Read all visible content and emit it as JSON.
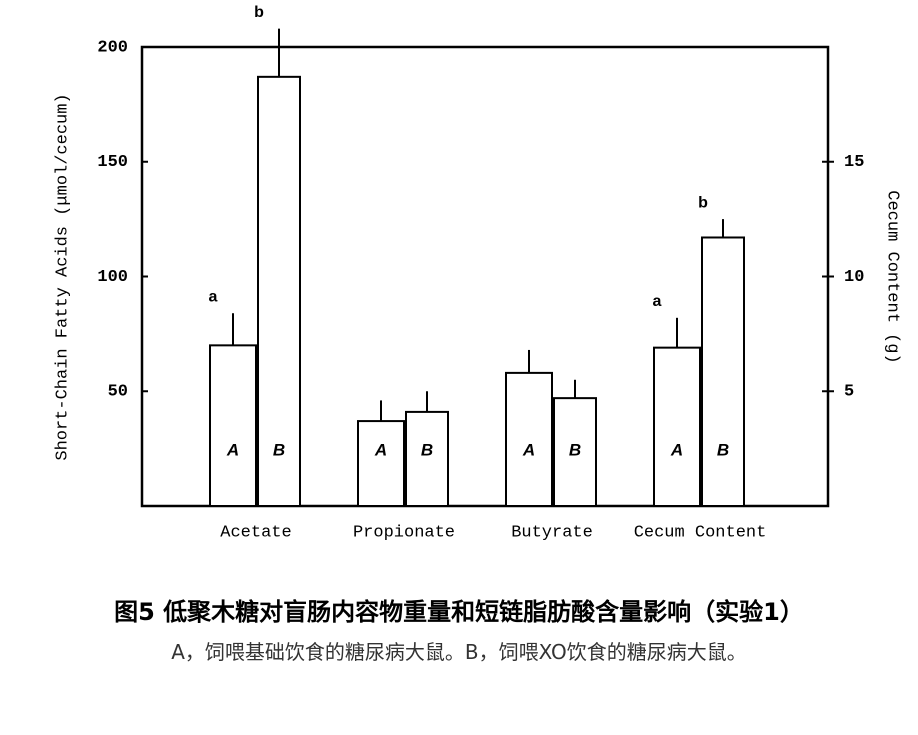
{
  "chart_data": {
    "type": "bar",
    "title": "图5 低聚木糖对盲肠内容物重量和短链脂肪酸含量影响（实验1）",
    "subtitle": "A，饲喂基础饮食的糖尿病大鼠。B，饲喂XO饮食的糖尿病大鼠。",
    "y_label": "Short-Chain Fatty Acids (μmol/cecum)",
    "y2_label": "Cecum Content (g)",
    "categories": [
      "Acetate",
      "Propionate",
      "Butyrate",
      "Cecum Content"
    ],
    "ylim": [
      0,
      200
    ],
    "yticks": [
      50,
      100,
      150,
      200
    ],
    "y2lim": [
      0,
      20
    ],
    "y2ticks": [
      5,
      10,
      15
    ],
    "series": [
      {
        "name": "A",
        "color": "#ffffff",
        "values": [
          70,
          37,
          58,
          null
        ],
        "errors": [
          14,
          9,
          10,
          null
        ],
        "significance_labels": [
          "a",
          null,
          null,
          null
        ]
      },
      {
        "name": "B",
        "color": "#ffffff",
        "values": [
          187,
          41,
          47,
          null
        ],
        "errors": [
          21,
          9,
          8,
          null
        ],
        "significance_labels": [
          "b",
          null,
          null,
          null
        ]
      },
      {
        "name": "A",
        "color": "#ffffff",
        "axis": "y2",
        "values": [
          null,
          null,
          null,
          6.9
        ],
        "errors": [
          null,
          null,
          null,
          1.3
        ],
        "significance_labels": [
          null,
          null,
          null,
          "a"
        ]
      },
      {
        "name": "B",
        "color": "#ffffff",
        "axis": "y2",
        "values": [
          null,
          null,
          null,
          11.7
        ],
        "errors": [
          null,
          null,
          null,
          0.8
        ],
        "significance_labels": [
          null,
          null,
          null,
          "b"
        ]
      }
    ]
  }
}
